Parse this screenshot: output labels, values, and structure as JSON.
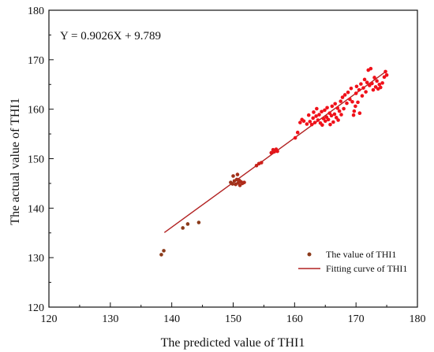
{
  "chart_data": {
    "type": "scatter",
    "xlabel": "The predicted value of THI1",
    "ylabel": "The actual value of THI1",
    "annotation": "Y = 0.9026X + 9.789",
    "xlim": [
      120,
      180
    ],
    "ylim": [
      120,
      180
    ],
    "xticks": [
      120,
      130,
      140,
      150,
      160,
      170,
      180
    ],
    "yticks": [
      120,
      130,
      140,
      150,
      160,
      170,
      180
    ],
    "grid": false,
    "legend_position": "bottom-right",
    "series": [
      {
        "name": "The value of THI1",
        "kind": "points",
        "color_low": "#8b3a1a",
        "color_high": "#f0111a",
        "points": [
          [
            138.3,
            130.6
          ],
          [
            138.7,
            131.4
          ],
          [
            141.8,
            136.0
          ],
          [
            142.6,
            136.8
          ],
          [
            144.4,
            137.1
          ],
          [
            149.6,
            145.2
          ],
          [
            149.9,
            144.9
          ],
          [
            150.0,
            146.5
          ],
          [
            150.2,
            145.5
          ],
          [
            150.4,
            144.8
          ],
          [
            150.6,
            145.8
          ],
          [
            150.7,
            146.8
          ],
          [
            150.8,
            145.1
          ],
          [
            151.0,
            145.6
          ],
          [
            151.1,
            144.6
          ],
          [
            151.3,
            145.3
          ],
          [
            151.5,
            145.0
          ],
          [
            151.8,
            145.2
          ],
          [
            153.8,
            148.6
          ],
          [
            154.2,
            149.0
          ],
          [
            154.6,
            149.2
          ],
          [
            156.2,
            151.2
          ],
          [
            156.5,
            151.8
          ],
          [
            156.7,
            151.4
          ],
          [
            157.0,
            151.9
          ],
          [
            157.2,
            151.5
          ],
          [
            160.1,
            154.2
          ],
          [
            160.5,
            155.3
          ],
          [
            160.9,
            157.3
          ],
          [
            161.2,
            157.9
          ],
          [
            161.5,
            157.6
          ],
          [
            162.0,
            157.0
          ],
          [
            162.3,
            158.8
          ],
          [
            162.5,
            157.5
          ],
          [
            162.8,
            156.9
          ],
          [
            163.0,
            158.2
          ],
          [
            163.1,
            159.4
          ],
          [
            163.3,
            157.3
          ],
          [
            163.5,
            158.6
          ],
          [
            163.6,
            160.1
          ],
          [
            163.8,
            157.8
          ],
          [
            164.0,
            158.9
          ],
          [
            164.2,
            157.2
          ],
          [
            164.4,
            159.5
          ],
          [
            164.5,
            156.8
          ],
          [
            164.7,
            158.1
          ],
          [
            164.9,
            159.8
          ],
          [
            165.0,
            157.6
          ],
          [
            165.2,
            158.4
          ],
          [
            165.3,
            160.3
          ],
          [
            165.5,
            157.9
          ],
          [
            165.7,
            159.2
          ],
          [
            165.8,
            156.9
          ],
          [
            166.0,
            158.7
          ],
          [
            166.1,
            160.6
          ],
          [
            166.3,
            157.4
          ],
          [
            166.5,
            159.0
          ],
          [
            166.6,
            161.1
          ],
          [
            166.8,
            158.3
          ],
          [
            167.0,
            160.2
          ],
          [
            167.1,
            157.8
          ],
          [
            167.3,
            159.6
          ],
          [
            167.5,
            161.6
          ],
          [
            167.6,
            158.9
          ],
          [
            167.8,
            162.4
          ],
          [
            168.0,
            160.1
          ],
          [
            168.2,
            162.9
          ],
          [
            168.5,
            161.2
          ],
          [
            168.7,
            163.4
          ],
          [
            169.0,
            162.0
          ],
          [
            169.2,
            164.2
          ],
          [
            169.4,
            161.5
          ],
          [
            169.6,
            158.8
          ],
          [
            169.7,
            159.6
          ],
          [
            169.9,
            160.6
          ],
          [
            170.0,
            163.2
          ],
          [
            170.1,
            164.6
          ],
          [
            170.3,
            161.4
          ],
          [
            170.5,
            163.9
          ],
          [
            170.6,
            159.2
          ],
          [
            170.8,
            165.1
          ],
          [
            171.0,
            162.7
          ],
          [
            171.2,
            164.3
          ],
          [
            171.4,
            166.0
          ],
          [
            171.6,
            163.5
          ],
          [
            171.8,
            165.4
          ],
          [
            172.0,
            167.9
          ],
          [
            172.2,
            164.8
          ],
          [
            172.4,
            168.2
          ],
          [
            172.6,
            165.2
          ],
          [
            172.8,
            163.9
          ],
          [
            173.0,
            166.4
          ],
          [
            173.2,
            164.5
          ],
          [
            173.4,
            165.7
          ],
          [
            173.6,
            164.1
          ],
          [
            173.8,
            165.0
          ],
          [
            174.0,
            164.4
          ],
          [
            174.3,
            165.3
          ],
          [
            174.6,
            166.5
          ],
          [
            174.8,
            167.6
          ],
          [
            175.0,
            166.9
          ]
        ]
      },
      {
        "name": "Fitting curve of THI1",
        "kind": "line",
        "color": "#b22222",
        "slope": 0.9026,
        "intercept": 9.789,
        "x_range": [
          138.8,
          175.0
        ]
      }
    ]
  }
}
